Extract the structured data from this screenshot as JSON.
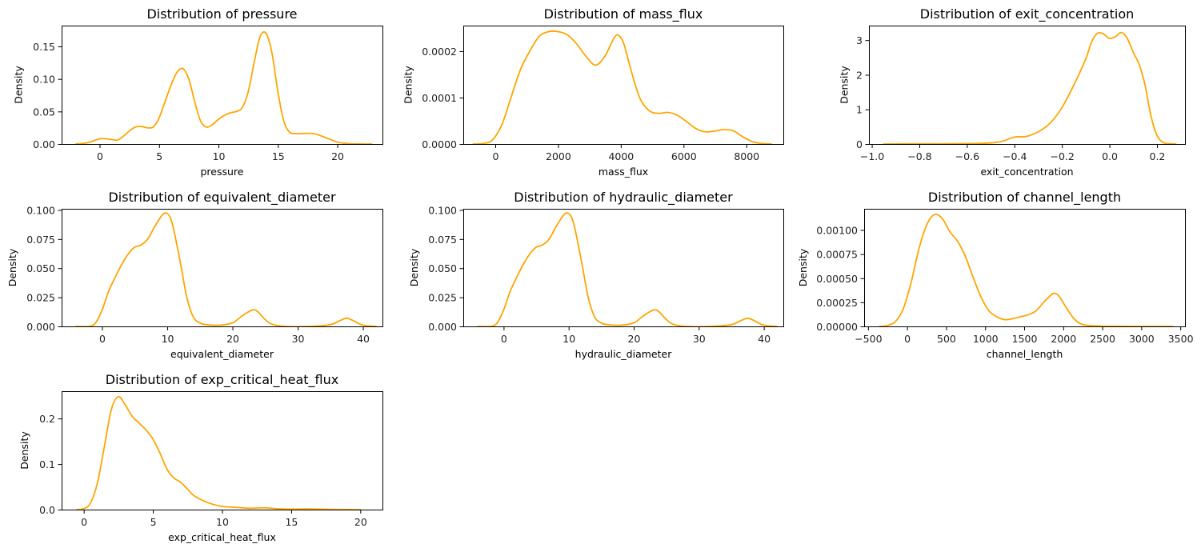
{
  "figure": {
    "line_color": "#ffa500"
  },
  "chart_data": [
    {
      "type": "line",
      "title": "Distribution of pressure",
      "xlabel": "pressure",
      "ylabel": "Density",
      "xlim": [
        -3.2,
        23.8
      ],
      "ylim": [
        0,
        0.182
      ],
      "xticks": [
        0,
        5,
        10,
        15,
        20
      ],
      "xtick_labels": [
        "0",
        "5",
        "10",
        "15",
        "20"
      ],
      "yticks": [
        0,
        0.05,
        0.1,
        0.15
      ],
      "ytick_labels": [
        "0.00",
        "0.05",
        "0.10",
        "0.15"
      ],
      "x": [
        -2.0,
        -1.0,
        0.0,
        0.5,
        1.0,
        1.5,
        2.0,
        2.5,
        3.0,
        3.5,
        4.0,
        4.5,
        5.0,
        5.5,
        6.0,
        6.5,
        7.0,
        7.5,
        8.0,
        8.5,
        9.0,
        9.5,
        10.0,
        10.5,
        11.0,
        11.5,
        12.0,
        12.5,
        13.0,
        13.5,
        14.0,
        14.5,
        15.0,
        15.5,
        16.0,
        16.5,
        17.0,
        18.0,
        19.0,
        20.0,
        21.0,
        22.0,
        22.9
      ],
      "y": [
        0.0,
        0.002,
        0.008,
        0.008,
        0.007,
        0.006,
        0.012,
        0.02,
        0.026,
        0.027,
        0.025,
        0.026,
        0.04,
        0.065,
        0.09,
        0.11,
        0.116,
        0.1,
        0.065,
        0.035,
        0.026,
        0.03,
        0.038,
        0.044,
        0.048,
        0.05,
        0.056,
        0.08,
        0.125,
        0.165,
        0.17,
        0.14,
        0.08,
        0.035,
        0.018,
        0.016,
        0.016,
        0.016,
        0.01,
        0.003,
        0.0005,
        0.0001,
        0.0
      ]
    },
    {
      "type": "line",
      "title": "Distribution of mass_flux",
      "xlabel": "mass_flux",
      "ylabel": "Density",
      "xlim": [
        -1020,
        9180
      ],
      "ylim": [
        0,
        0.000255
      ],
      "xticks": [
        0,
        2000,
        4000,
        6000,
        8000
      ],
      "xtick_labels": [
        "0",
        "2000",
        "4000",
        "6000",
        "8000"
      ],
      "yticks": [
        0,
        0.0001,
        0.0002
      ],
      "ytick_labels": [
        "0.0000",
        "0.0001",
        "0.0002"
      ],
      "x": [
        -700,
        -400,
        -100,
        200,
        500,
        800,
        1100,
        1400,
        1700,
        2000,
        2300,
        2600,
        2900,
        3200,
        3500,
        3800,
        3950,
        4100,
        4300,
        4600,
        4900,
        5200,
        5500,
        5800,
        6100,
        6400,
        6700,
        7000,
        7300,
        7600,
        7900,
        8200,
        8500,
        8800
      ],
      "y": [
        0.0,
        1e-06,
        8e-06,
        4e-05,
        0.0001,
        0.00016,
        0.0002,
        0.000232,
        0.000242,
        0.000242,
        0.000235,
        0.000215,
        0.000188,
        0.00017,
        0.00019,
        0.00023,
        0.000233,
        0.000215,
        0.000165,
        0.0001,
        7.2e-05,
        6.6e-05,
        6.8e-05,
        6.2e-05,
        4.8e-05,
        3.3e-05,
        2.6e-05,
        2.8e-05,
        3.1e-05,
        2.8e-05,
        1.5e-05,
        5e-06,
        1e-06,
        0.0
      ]
    },
    {
      "type": "line",
      "title": "Distribution of exit_concentration",
      "xlabel": "exit_concentration",
      "ylabel": "Density",
      "xlim": [
        -1.012,
        0.318
      ],
      "ylim": [
        0,
        3.42
      ],
      "xticks": [
        -1.0,
        -0.8,
        -0.6,
        -0.4,
        -0.2,
        0.0,
        0.2
      ],
      "xtick_labels": [
        "−1.0",
        "−0.8",
        "−0.6",
        "−0.4",
        "−0.2",
        "0.0",
        "0.2"
      ],
      "yticks": [
        0,
        1,
        2,
        3
      ],
      "ytick_labels": [
        "0",
        "1",
        "2",
        "3"
      ],
      "x": [
        -0.95,
        -0.8,
        -0.6,
        -0.5,
        -0.45,
        -0.4,
        -0.35,
        -0.3,
        -0.25,
        -0.2,
        -0.15,
        -0.1,
        -0.075,
        -0.05,
        -0.025,
        0.0,
        0.025,
        0.05,
        0.075,
        0.1,
        0.125,
        0.15,
        0.175,
        0.2,
        0.225,
        0.25,
        0.28
      ],
      "y": [
        0.0,
        0.005,
        0.01,
        0.03,
        0.08,
        0.2,
        0.22,
        0.35,
        0.6,
        1.05,
        1.7,
        2.45,
        2.95,
        3.2,
        3.18,
        3.05,
        3.1,
        3.22,
        3.05,
        2.65,
        2.3,
        1.7,
        0.8,
        0.25,
        0.05,
        0.01,
        0.0
      ]
    },
    {
      "type": "line",
      "title": "Distribution of equivalent_diameter",
      "xlabel": "equivalent_diameter",
      "ylabel": "Density",
      "xlim": [
        -6.2,
        43.0
      ],
      "ylim": [
        0,
        0.101
      ],
      "xticks": [
        0,
        10,
        20,
        30,
        40
      ],
      "xtick_labels": [
        "0",
        "10",
        "20",
        "30",
        "40"
      ],
      "yticks": [
        0,
        0.025,
        0.05,
        0.075,
        0.1
      ],
      "ytick_labels": [
        "0.000",
        "0.025",
        "0.050",
        "0.075",
        "0.100"
      ],
      "x": [
        -4.0,
        -2.0,
        -1.0,
        0.0,
        1.0,
        2.0,
        3.0,
        4.0,
        5.0,
        6.0,
        7.0,
        8.0,
        9.0,
        9.5,
        10.0,
        10.5,
        11.0,
        12.0,
        13.0,
        14.0,
        15.0,
        16.0,
        18.0,
        20.0,
        21.0,
        22.0,
        23.0,
        23.5,
        24.0,
        25.0,
        26.0,
        28.0,
        32.0,
        35.0,
        36.5,
        37.5,
        38.5,
        40.0,
        42.0
      ],
      "y": [
        0.0,
        0.0,
        0.003,
        0.014,
        0.03,
        0.042,
        0.053,
        0.062,
        0.068,
        0.07,
        0.075,
        0.085,
        0.094,
        0.097,
        0.097,
        0.093,
        0.083,
        0.055,
        0.025,
        0.008,
        0.003,
        0.0015,
        0.001,
        0.003,
        0.007,
        0.011,
        0.014,
        0.014,
        0.012,
        0.006,
        0.002,
        0.0,
        0.0,
        0.0015,
        0.005,
        0.007,
        0.005,
        0.001,
        0.0
      ]
    },
    {
      "type": "line",
      "title": "Distribution of hydraulic_diameter",
      "xlabel": "hydraulic_diameter",
      "ylabel": "Density",
      "xlim": [
        -6.2,
        43.0
      ],
      "ylim": [
        0,
        0.101
      ],
      "xticks": [
        0,
        10,
        20,
        30,
        40
      ],
      "xtick_labels": [
        "0",
        "10",
        "20",
        "30",
        "40"
      ],
      "yticks": [
        0,
        0.025,
        0.05,
        0.075,
        0.1
      ],
      "ytick_labels": [
        "0.000",
        "0.025",
        "0.050",
        "0.075",
        "0.100"
      ],
      "x": [
        -4.0,
        -2.0,
        -1.0,
        0.0,
        1.0,
        2.0,
        3.0,
        4.0,
        5.0,
        6.0,
        7.0,
        8.0,
        9.0,
        9.5,
        10.0,
        10.5,
        11.0,
        12.0,
        13.0,
        14.0,
        15.0,
        16.0,
        18.0,
        20.0,
        21.0,
        22.0,
        23.0,
        23.5,
        24.0,
        25.0,
        26.0,
        28.0,
        32.0,
        35.0,
        36.5,
        37.5,
        38.5,
        40.0,
        42.0
      ],
      "y": [
        0.0,
        0.0,
        0.003,
        0.014,
        0.03,
        0.042,
        0.053,
        0.062,
        0.068,
        0.07,
        0.075,
        0.085,
        0.094,
        0.097,
        0.097,
        0.093,
        0.083,
        0.055,
        0.025,
        0.008,
        0.003,
        0.0015,
        0.001,
        0.003,
        0.007,
        0.011,
        0.014,
        0.014,
        0.012,
        0.006,
        0.002,
        0.0,
        0.0,
        0.0015,
        0.005,
        0.007,
        0.005,
        0.001,
        0.0
      ]
    },
    {
      "type": "line",
      "title": "Distribution of channel_length",
      "xlabel": "channel_length",
      "ylabel": "Density",
      "xlim": [
        -550,
        3560
      ],
      "ylim": [
        0,
        0.00122
      ],
      "xticks": [
        -500,
        0,
        500,
        1000,
        1500,
        2000,
        2500,
        3000,
        3500
      ],
      "xtick_labels": [
        "−500",
        "0",
        "500",
        "1000",
        "1500",
        "2000",
        "2500",
        "3000",
        "3500"
      ],
      "yticks": [
        0,
        0.00025,
        0.0005,
        0.00075,
        0.001
      ],
      "ytick_labels": [
        "0.00000",
        "0.00025",
        "0.00050",
        "0.00075",
        "0.00100"
      ],
      "x": [
        -350,
        -250,
        -150,
        -50,
        50,
        150,
        250,
        350,
        450,
        550,
        650,
        750,
        850,
        950,
        1050,
        1150,
        1250,
        1350,
        1450,
        1550,
        1650,
        1750,
        1850,
        1900,
        1950,
        2050,
        2150,
        2250,
        2400,
        2600,
        3000,
        3400
      ],
      "y": [
        0.0,
        1e-05,
        5e-05,
        0.00018,
        0.00045,
        0.0008,
        0.00105,
        0.00116,
        0.00112,
        0.00098,
        0.00088,
        0.00072,
        0.0005,
        0.0003,
        0.00016,
        0.0001,
        7e-05,
        8e-05,
        0.0001,
        0.00012,
        0.00016,
        0.00025,
        0.00033,
        0.00034,
        0.00031,
        0.00018,
        7e-05,
        2e-05,
        5e-06,
        1e-06,
        0.0,
        0.0
      ]
    },
    {
      "type": "line",
      "title": "Distribution of exp_critical_heat_flux",
      "xlabel": "exp_critical_heat_flux",
      "ylabel": "Density",
      "xlim": [
        -1.6,
        21.6
      ],
      "ylim": [
        0,
        0.26
      ],
      "xticks": [
        0,
        5,
        10,
        15,
        20
      ],
      "xtick_labels": [
        "0",
        "5",
        "10",
        "15",
        "20"
      ],
      "yticks": [
        0,
        0.1,
        0.2
      ],
      "ytick_labels": [
        "0.0",
        "0.1",
        "0.2"
      ],
      "x": [
        -0.5,
        0.0,
        0.5,
        1.0,
        1.5,
        2.0,
        2.5,
        3.0,
        3.5,
        4.0,
        4.5,
        5.0,
        5.5,
        6.0,
        6.5,
        7.0,
        7.5,
        8.0,
        9.0,
        10.0,
        11.0,
        12.0,
        13.0,
        14.0,
        15.0,
        16.0,
        17.0,
        18.0,
        19.0,
        20.0
      ],
      "y": [
        0.0,
        0.002,
        0.015,
        0.06,
        0.14,
        0.22,
        0.248,
        0.23,
        0.205,
        0.19,
        0.175,
        0.155,
        0.125,
        0.09,
        0.07,
        0.06,
        0.045,
        0.03,
        0.015,
        0.007,
        0.005,
        0.003,
        0.004,
        0.002,
        0.001,
        0.0015,
        0.001,
        0.0005,
        0.0002,
        0.0
      ]
    }
  ]
}
